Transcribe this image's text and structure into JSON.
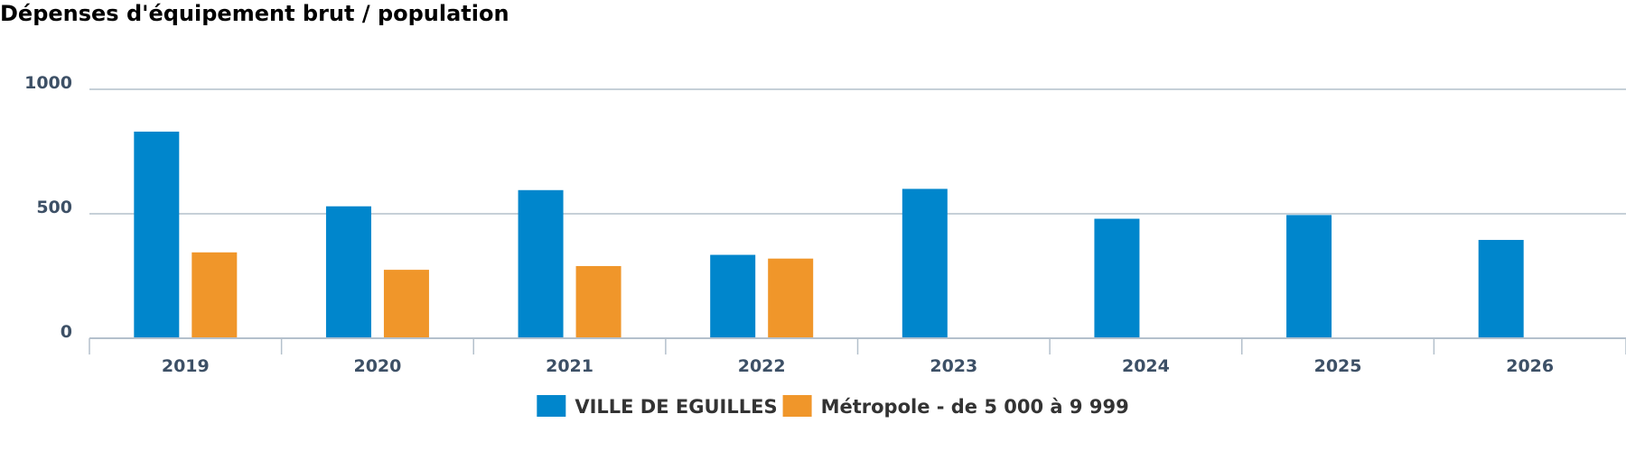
{
  "chart_data": {
    "type": "bar",
    "title": "Dépenses d'équipement brut / population",
    "xlabel": "",
    "ylabel": "",
    "categories": [
      "2019",
      "2020",
      "2021",
      "2022",
      "2023",
      "2024",
      "2025",
      "2026"
    ],
    "series": [
      {
        "name": "VILLE DE EGUILLES",
        "color": "#0086cc",
        "values": [
          830,
          530,
          595,
          335,
          600,
          480,
          495,
          395
        ]
      },
      {
        "name": "Métropole - de 5 000 à 9 999",
        "color": "#f0962a",
        "values": [
          345,
          275,
          290,
          320,
          null,
          null,
          null,
          null
        ]
      }
    ],
    "ylim": [
      0,
      1000
    ],
    "yticks": [
      "0",
      "500",
      "1000"
    ],
    "grid": true,
    "legend_position": "bottom-center"
  }
}
